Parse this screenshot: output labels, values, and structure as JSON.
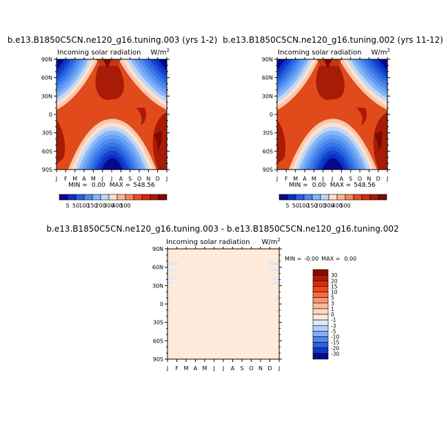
{
  "chart_data": [
    {
      "type": "heatmap",
      "title": "b.e13.B1850C5CN.ne120_g16.tuning.003 (yrs 1-2)",
      "subtitle": "Incoming solar radiation",
      "units_prefix": "W/m",
      "units_sup": "2",
      "x_ticks": [
        "J",
        "F",
        "M",
        "A",
        "M",
        "J",
        "J",
        "A",
        "S",
        "O",
        "N",
        "D",
        "J"
      ],
      "y_ticks": [
        "90N",
        "60N",
        "30N",
        "0",
        "30S",
        "60S",
        "90S"
      ],
      "min_label": "MIN =",
      "min_value": "0.00",
      "max_label": "MAX =",
      "max_value": "548.56",
      "min": 0.0,
      "max": 548.56,
      "colorbar_levels": [
        "5",
        "50",
        "100",
        "150",
        "200",
        "300",
        "400",
        "500"
      ],
      "colorbar_colors": [
        "#08088a",
        "#0b30c4",
        "#2461e0",
        "#4d8cf0",
        "#86b6f7",
        "#bcd6fa",
        "#fde0cc",
        "#fcb590",
        "#f6845c",
        "#ea4b25",
        "#d32c0c",
        "#a81b06",
        "#7a0b02"
      ]
    },
    {
      "type": "heatmap",
      "title": "b.e13.B1850C5CN.ne120_g16.tuning.002 (yrs 11-12)",
      "subtitle": "Incoming solar radiation",
      "units_prefix": "W/m",
      "units_sup": "2",
      "x_ticks": [
        "J",
        "F",
        "M",
        "A",
        "M",
        "J",
        "J",
        "A",
        "S",
        "O",
        "N",
        "D",
        "J"
      ],
      "y_ticks": [
        "90N",
        "60N",
        "30N",
        "0",
        "30S",
        "60S",
        "90S"
      ],
      "min_label": "MIN =",
      "min_value": "0.00",
      "max_label": "MAX =",
      "max_value": "548.56",
      "min": 0.0,
      "max": 548.56,
      "colorbar_levels": [
        "5",
        "50",
        "100",
        "150",
        "200",
        "300",
        "400",
        "500"
      ],
      "colorbar_colors": [
        "#08088a",
        "#0b30c4",
        "#2461e0",
        "#4d8cf0",
        "#86b6f7",
        "#bcd6fa",
        "#fde0cc",
        "#fcb590",
        "#f6845c",
        "#ea4b25",
        "#d32c0c",
        "#a81b06",
        "#7a0b02"
      ]
    },
    {
      "type": "heatmap",
      "title": "b.e13.B1850C5CN.ne120_g16.tuning.003 - b.e13.B1850C5CN.ne120_g16.tuning.002",
      "subtitle": "Incoming solar radiation",
      "units_prefix": "W/m",
      "units_sup": "2",
      "x_ticks": [
        "J",
        "F",
        "M",
        "A",
        "M",
        "J",
        "J",
        "A",
        "S",
        "O",
        "N",
        "D",
        "J"
      ],
      "y_ticks": [
        "90N",
        "60N",
        "30N",
        "0",
        "30S",
        "60S",
        "90S"
      ],
      "min_label": "MIN =",
      "min_value": "-0.00",
      "max_label": "MAX =",
      "max_value": "0.00",
      "min": -0.0,
      "max": 0.0,
      "fill_color": "#fdeada",
      "colorbar_levels": [
        "30",
        "20",
        "15",
        "10",
        "5",
        "3",
        "1",
        "0",
        "-1",
        "-3",
        "-5",
        "-10",
        "-15",
        "-20",
        "-30"
      ],
      "colorbar_colors": [
        "#8a0b02",
        "#b01a06",
        "#d42c0c",
        "#ee4a22",
        "#f86c45",
        "#fb9470",
        "#fcb898",
        "#fed8c4",
        "#fdeada",
        "#dce8fa",
        "#b4d0f7",
        "#84aff2",
        "#5288eb",
        "#2a62e0",
        "#1538c2",
        "#080c8a"
      ]
    }
  ]
}
